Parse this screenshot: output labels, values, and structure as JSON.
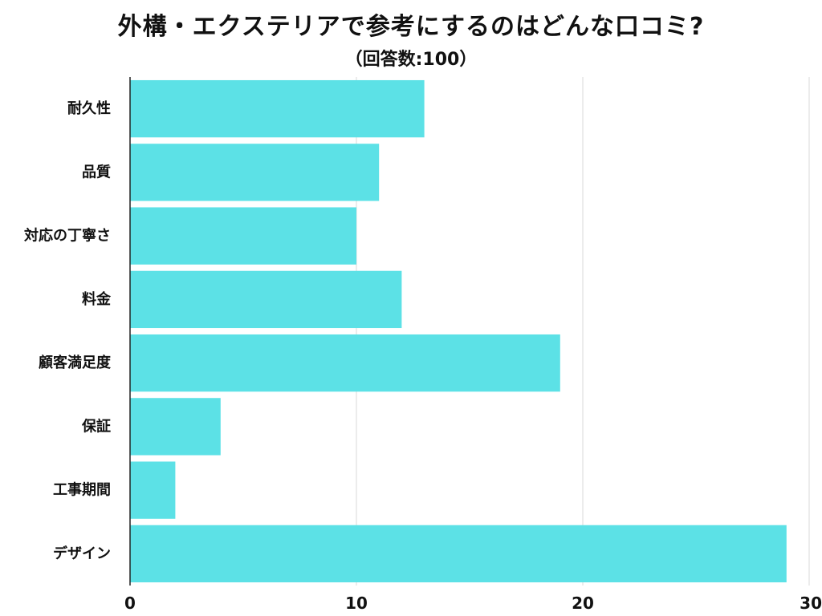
{
  "chart_data": {
    "type": "bar",
    "orientation": "horizontal",
    "title": "外構・エクステリアで参考にするのはどんな口コミ?",
    "subtitle": "（回答数:100）",
    "categories": [
      "耐久性",
      "品質",
      "対応の丁寧さ",
      "料金",
      "顧客満足度",
      "保証",
      "工事期間",
      "デザイン"
    ],
    "values": [
      13,
      11,
      10,
      12,
      19,
      4,
      2,
      29
    ],
    "xlim": [
      0,
      30
    ],
    "xticks": [
      0,
      10,
      20,
      30
    ],
    "xlabel": "",
    "ylabel": "",
    "grid": "vertical",
    "legend": "none",
    "colors": {
      "bar": "#5ce1e6",
      "grid": "#d9d9d9",
      "axis": "#222222",
      "text": "#111111"
    }
  }
}
